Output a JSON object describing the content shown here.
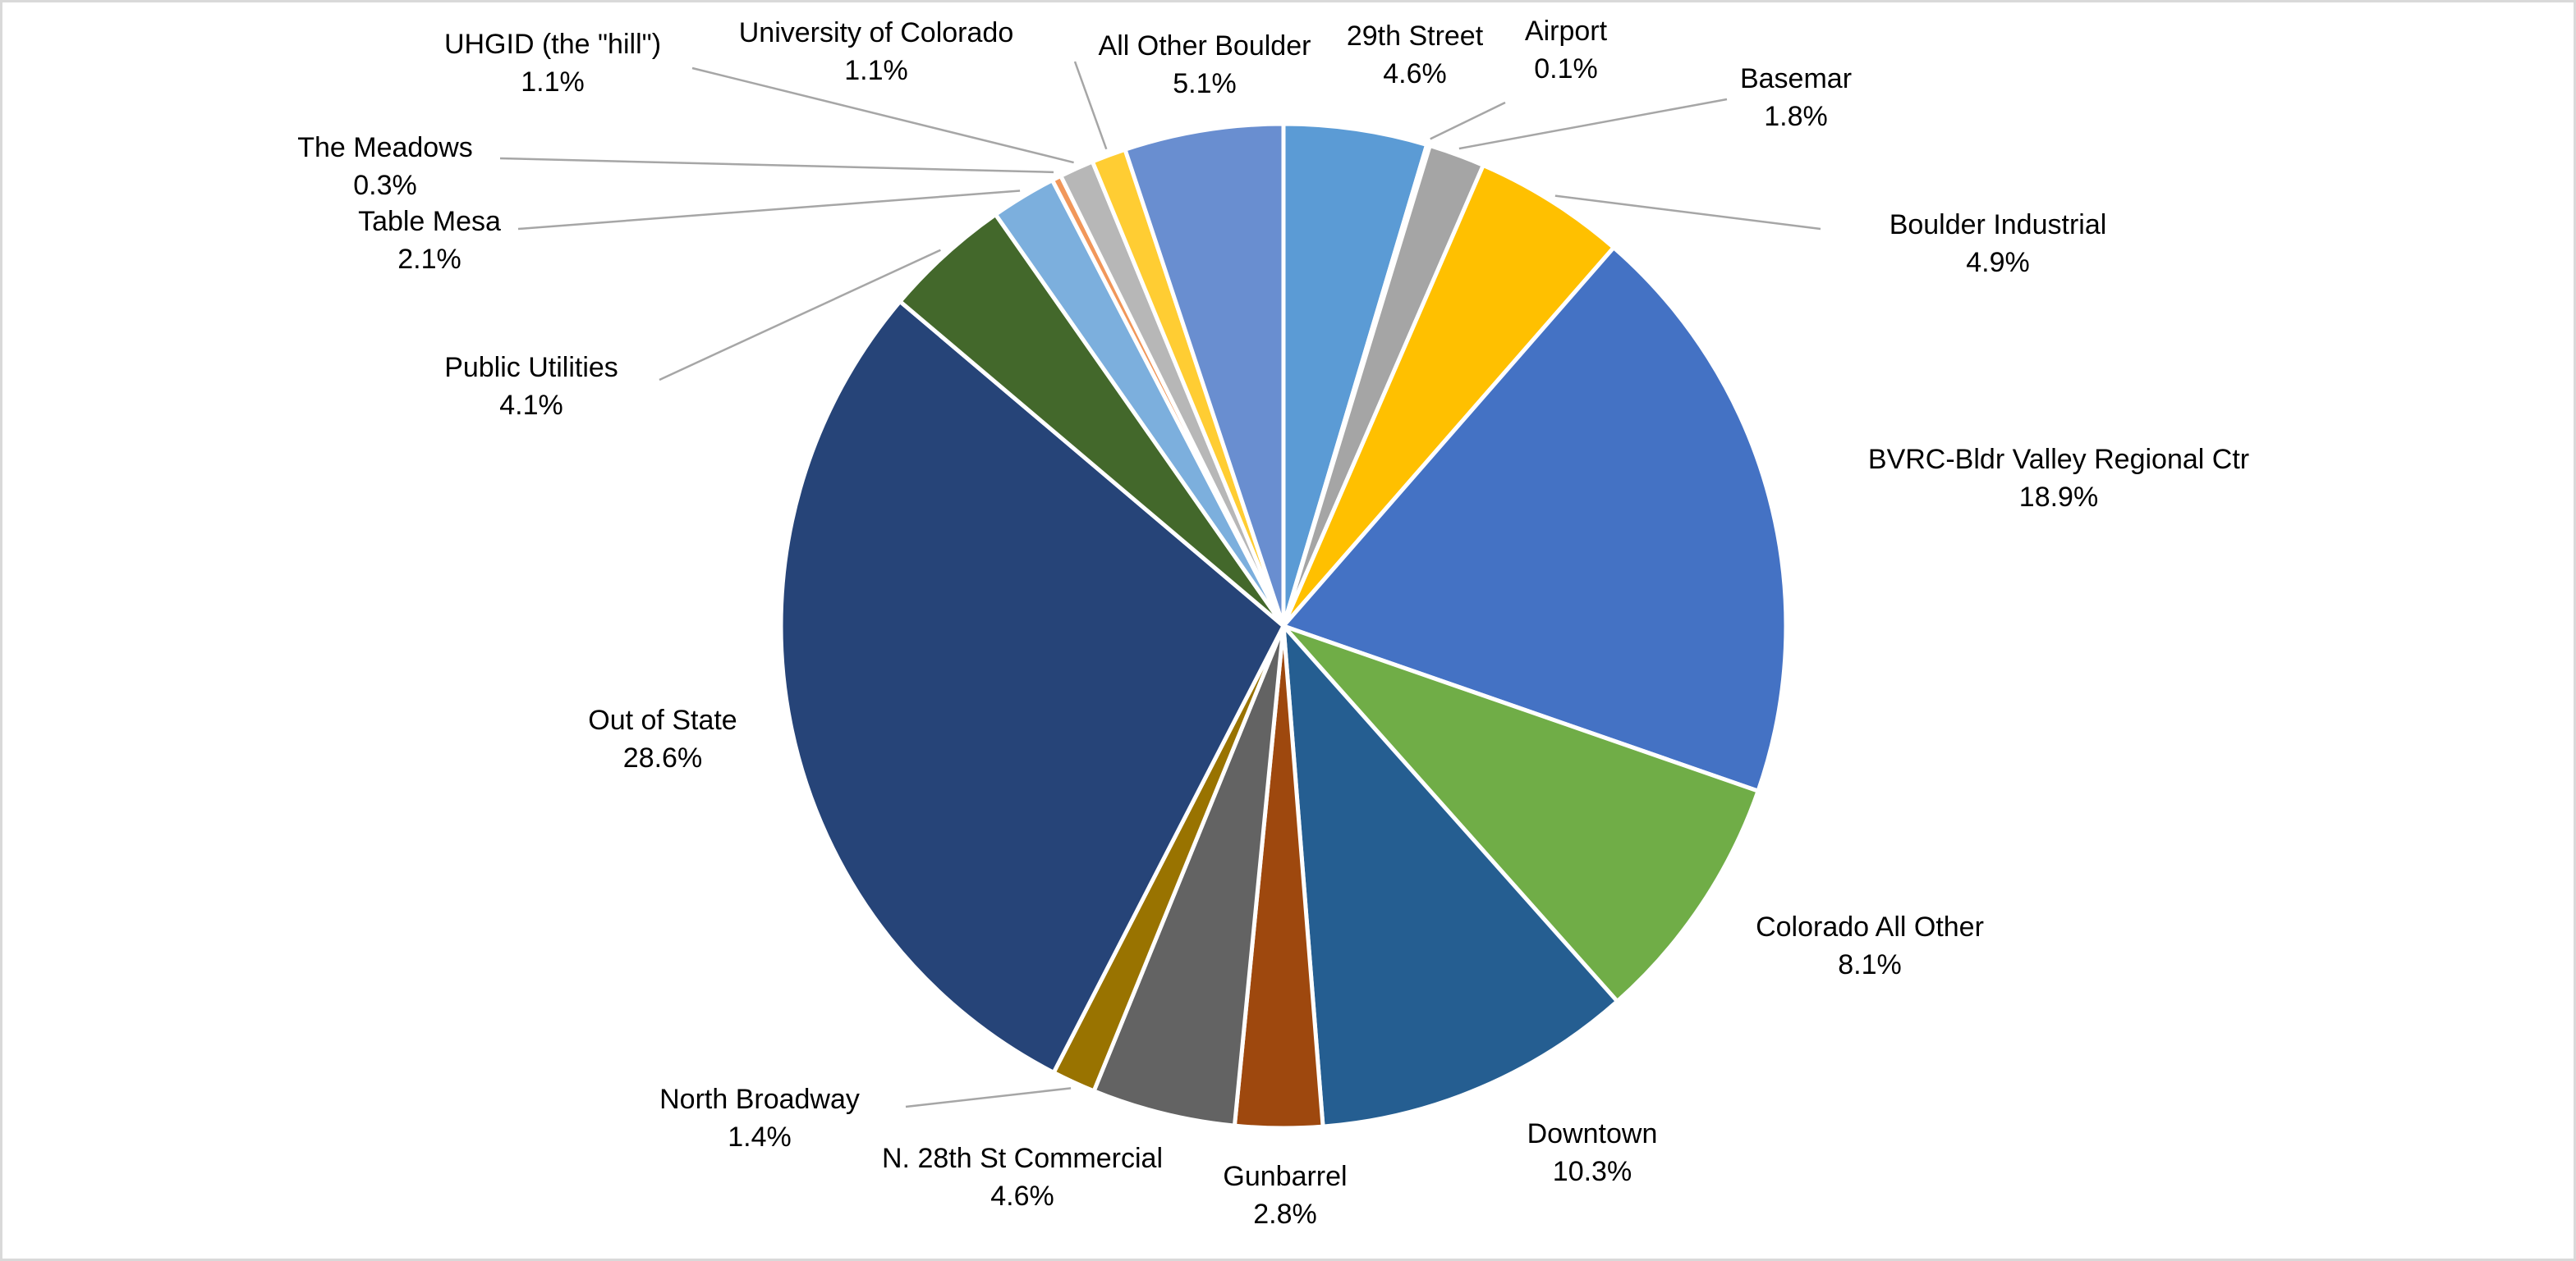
{
  "chart_data": {
    "type": "pie",
    "title": "",
    "start_angle_deg": 0,
    "direction": "clockwise",
    "slices": [
      {
        "label": "29th Street",
        "value": 4.6,
        "display": "4.6%",
        "color": "#5B9BD5"
      },
      {
        "label": "Airport",
        "value": 0.1,
        "display": "0.1%",
        "color": "#ED7D31"
      },
      {
        "label": "Basemar",
        "value": 1.8,
        "display": "1.8%",
        "color": "#A5A5A5"
      },
      {
        "label": "Boulder Industrial",
        "value": 4.9,
        "display": "4.9%",
        "color": "#FFC000"
      },
      {
        "label": "BVRC-Bldr Valley Regional Ctr",
        "value": 18.9,
        "display": "18.9%",
        "color": "#4472C4"
      },
      {
        "label": "Colorado All Other",
        "value": 8.1,
        "display": "8.1%",
        "color": "#70AD47"
      },
      {
        "label": "Downtown",
        "value": 10.3,
        "display": "10.3%",
        "color": "#255E91"
      },
      {
        "label": "Gunbarrel",
        "value": 2.8,
        "display": "2.8%",
        "color": "#9E480E"
      },
      {
        "label": "N. 28th St Commercial",
        "value": 4.6,
        "display": "4.6%",
        "color": "#636363"
      },
      {
        "label": "North Broadway",
        "value": 1.4,
        "display": "1.4%",
        "color": "#997300"
      },
      {
        "label": "Out of State",
        "value": 28.6,
        "display": "28.6%",
        "color": "#264478"
      },
      {
        "label": "Public Utilities",
        "value": 4.1,
        "display": "4.1%",
        "color": "#43682B"
      },
      {
        "label": "Table Mesa",
        "value": 2.1,
        "display": "2.1%",
        "color": "#7CAFDD"
      },
      {
        "label": "The Meadows",
        "value": 0.3,
        "display": "0.3%",
        "color": "#F1975A"
      },
      {
        "label": "UHGID (the \"hill\")",
        "value": 1.1,
        "display": "1.1%",
        "color": "#B7B7B7"
      },
      {
        "label": "University of Colorado",
        "value": 1.1,
        "display": "1.1%",
        "color": "#FFCD33"
      },
      {
        "label": "All Other Boulder",
        "value": 5.1,
        "display": "5.1%",
        "color": "#698ED0"
      }
    ]
  }
}
